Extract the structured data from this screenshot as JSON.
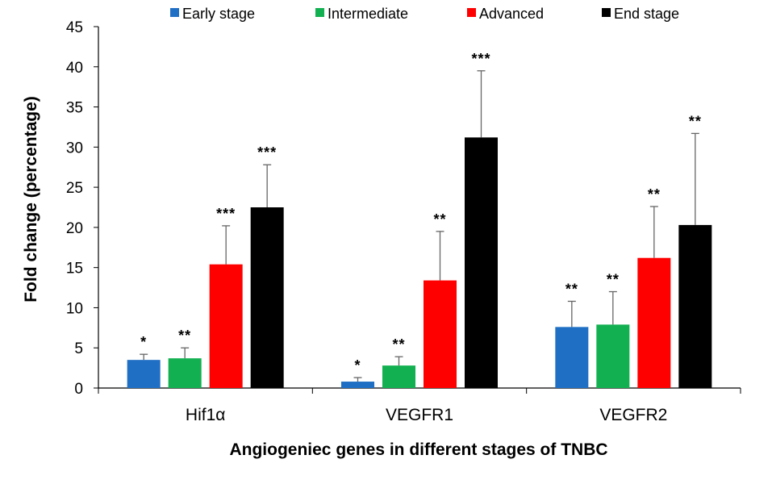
{
  "chart_data": {
    "type": "bar",
    "title": "",
    "xlabel": "Angiogeniec genes in different stages of TNBC",
    "ylabel": "Fold change (percentage)",
    "ylim": [
      0,
      45
    ],
    "yticks": [
      0,
      5,
      10,
      15,
      20,
      25,
      30,
      35,
      40,
      45
    ],
    "grid": false,
    "legend_position": "top",
    "categories": [
      "Hif1α",
      "VEGFR1",
      "VEGFR2"
    ],
    "series": [
      {
        "name": "Early stage",
        "color": "#1f6fc5",
        "values": [
          3.5,
          0.8,
          7.6
        ],
        "errors": [
          0.7,
          0.5,
          3.2
        ],
        "significance": [
          "*",
          "*",
          "**"
        ]
      },
      {
        "name": "Intermediate",
        "color": "#12b050",
        "values": [
          3.7,
          2.8,
          7.9
        ],
        "errors": [
          1.3,
          1.1,
          4.1
        ],
        "significance": [
          "**",
          "**",
          "**"
        ]
      },
      {
        "name": "Advanced",
        "color": "#ff0000",
        "values": [
          15.4,
          13.4,
          16.2
        ],
        "errors": [
          4.8,
          6.1,
          6.4
        ],
        "significance": [
          "***",
          "**",
          "**"
        ]
      },
      {
        "name": "End stage",
        "color": "#000000",
        "values": [
          22.5,
          31.2,
          20.3
        ],
        "errors": [
          5.3,
          8.3,
          11.4
        ],
        "significance": [
          "***",
          "***",
          "**"
        ]
      }
    ]
  }
}
